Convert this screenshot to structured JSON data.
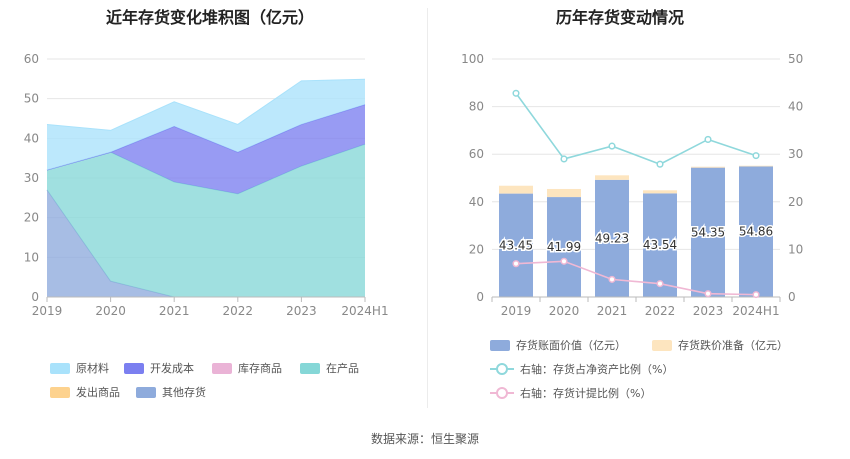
{
  "left_title": "近年存货变化堆积图（亿元）",
  "right_title": "历年存货变动情况",
  "source": "数据来源：恒生聚源",
  "legend_left": [
    {
      "label": "原材料",
      "color": "#a9e2fb"
    },
    {
      "label": "开发成本",
      "color": "#7b7ff0"
    },
    {
      "label": "库存商品",
      "color": "#eab3d6"
    },
    {
      "label": "在产品",
      "color": "#85d7d7"
    },
    {
      "label": "发出商品",
      "color": "#fdd28e"
    },
    {
      "label": "其他存货",
      "color": "#8eabdc"
    }
  ],
  "legend_right": [
    {
      "label": "存货账面价值（亿元）",
      "color": "#8eabdc",
      "kind": "bar"
    },
    {
      "label": "存货跌价准备（亿元）",
      "color": "#fde5bf",
      "kind": "bar"
    },
    {
      "label": "右轴：存货占净资产比例（%）",
      "color": "#8fd8dc",
      "kind": "line"
    },
    {
      "label": "右轴：存货计提比例（%）",
      "color": "#f0b8d4",
      "kind": "line"
    }
  ],
  "chart_data": [
    {
      "type": "area",
      "title": "近年存货变化堆积图（亿元）",
      "x": [
        "2019",
        "2020",
        "2021",
        "2022",
        "2023",
        "2024H1"
      ],
      "ylim": [
        0,
        60
      ],
      "yticks": [
        0,
        10,
        20,
        30,
        40,
        50,
        60
      ],
      "grid": true,
      "legend": "bottom",
      "stacked": true,
      "series": [
        {
          "name": "其他存货",
          "color": "#8eabdc",
          "values": [
            27,
            4,
            0,
            0,
            0,
            0
          ]
        },
        {
          "name": "在产品",
          "color": "#85d7d7",
          "values": [
            5,
            32.5,
            29,
            26,
            33,
            38.5
          ]
        },
        {
          "name": "开发成本",
          "color": "#7b7ff0",
          "values": [
            0,
            0,
            14,
            10.5,
            10.5,
            10
          ]
        },
        {
          "name": "原材料",
          "color": "#a9e2fb",
          "values": [
            11.5,
            5.5,
            6.2,
            7,
            11,
            6.4
          ]
        }
      ]
    },
    {
      "type": "bar",
      "title": "历年存货变动情况",
      "categories": [
        "2019",
        "2020",
        "2021",
        "2022",
        "2023",
        "2024H1"
      ],
      "ylim": [
        0,
        100
      ],
      "yticks": [
        0,
        20,
        40,
        60,
        80,
        100
      ],
      "y2lim": [
        0,
        50
      ],
      "y2ticks": [
        0,
        10,
        20,
        30,
        40,
        50
      ],
      "grid": true,
      "legend": "bottom",
      "stacked": true,
      "series": [
        {
          "name": "存货账面价值（亿元）",
          "color": "#8eabdc",
          "values": [
            43.45,
            41.99,
            49.23,
            43.54,
            54.35,
            54.86
          ],
          "labels": [
            "43.45",
            "41.99",
            "49.23",
            "43.54",
            "54.35",
            "54.86"
          ]
        },
        {
          "name": "存货跌价准备（亿元）",
          "color": "#fde5bf",
          "values": [
            3.3,
            3.4,
            1.9,
            1.3,
            0.4,
            0.3
          ]
        }
      ],
      "lines": [
        {
          "name": "右轴：存货占净资产比例（%）",
          "color": "#8fd8dc",
          "axis": "right",
          "values": [
            42.8,
            29,
            31.7,
            27.9,
            33.1,
            29.7
          ]
        },
        {
          "name": "右轴：存货计提比例（%）",
          "color": "#f0b8d4",
          "axis": "right",
          "values": [
            7,
            7.5,
            3.7,
            2.8,
            0.7,
            0.5
          ]
        }
      ]
    }
  ]
}
